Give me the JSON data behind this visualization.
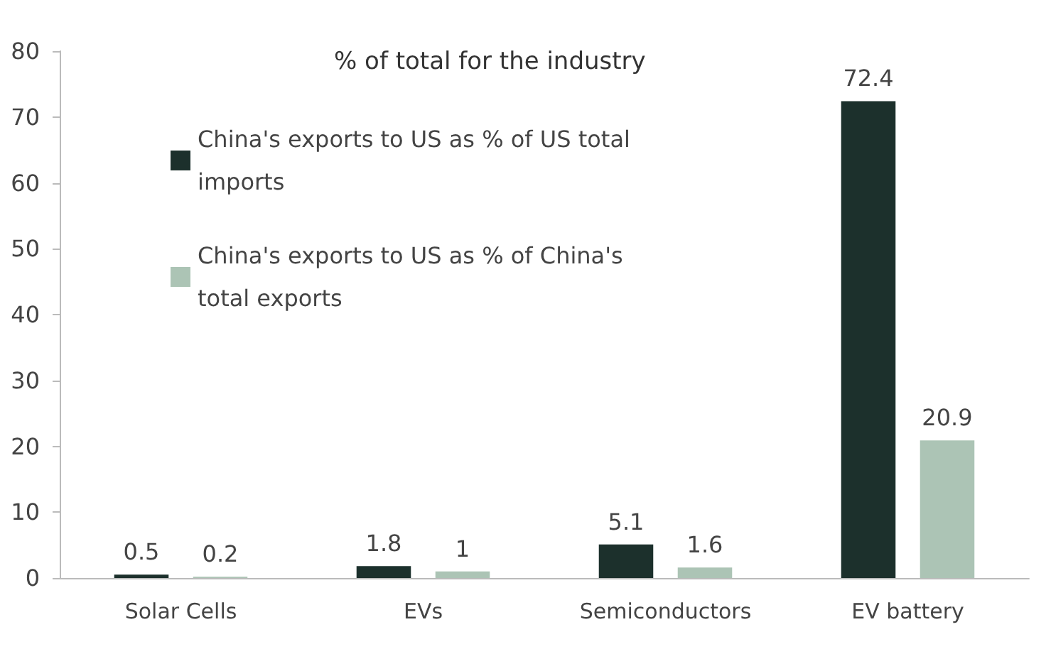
{
  "chart_data": {
    "type": "bar",
    "title": "% of total for the industry",
    "categories": [
      "Solar Cells",
      "EVs",
      "Semiconductors",
      "EV battery"
    ],
    "series": [
      {
        "name": "China's exports to US as % of US total imports",
        "color": "#1c302c",
        "values": [
          0.5,
          1.8,
          5.1,
          72.4
        ]
      },
      {
        "name": "China's exports to US as % of China's total exports",
        "color": "#acc4b5",
        "values": [
          0.2,
          1,
          1.6,
          20.9
        ]
      }
    ],
    "ylim": [
      0,
      80
    ],
    "yticks": [
      0,
      10,
      20,
      30,
      40,
      50,
      60,
      70,
      80
    ],
    "grid": false,
    "legend": "top left",
    "data_labels": true
  }
}
